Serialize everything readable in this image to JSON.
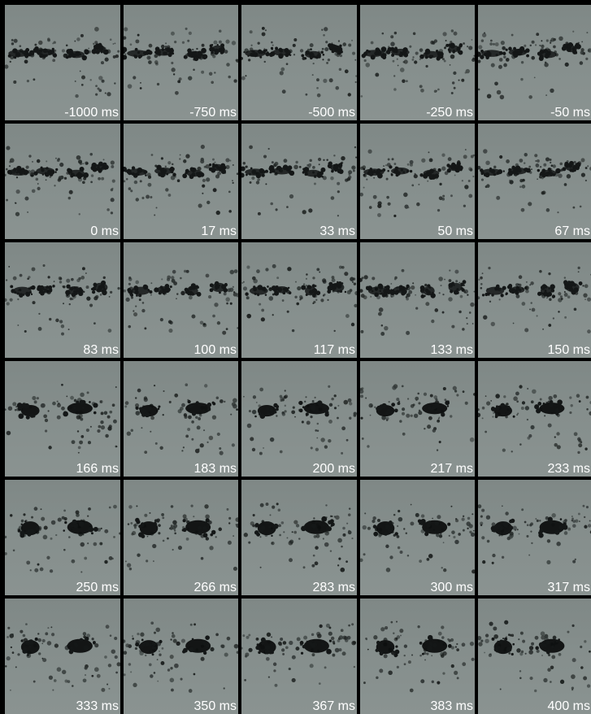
{
  "frames": [
    {
      "label": "-1000 ms",
      "stage": 0
    },
    {
      "label": "-750 ms",
      "stage": 0
    },
    {
      "label": "-500 ms",
      "stage": 0
    },
    {
      "label": "-250 ms",
      "stage": 0
    },
    {
      "label": "-50 ms",
      "stage": 0
    },
    {
      "label": "0 ms",
      "stage": 0
    },
    {
      "label": "17 ms",
      "stage": 0
    },
    {
      "label": "33 ms",
      "stage": 0
    },
    {
      "label": "50 ms",
      "stage": 0
    },
    {
      "label": "67 ms",
      "stage": 0
    },
    {
      "label": "83 ms",
      "stage": 1
    },
    {
      "label": "100 ms",
      "stage": 1
    },
    {
      "label": "117 ms",
      "stage": 1
    },
    {
      "label": "133 ms",
      "stage": 1
    },
    {
      "label": "150 ms",
      "stage": 1
    },
    {
      "label": "166 ms",
      "stage": 2
    },
    {
      "label": "183 ms",
      "stage": 2
    },
    {
      "label": "200 ms",
      "stage": 2
    },
    {
      "label": "217 ms",
      "stage": 2
    },
    {
      "label": "233 ms",
      "stage": 2
    },
    {
      "label": "250 ms",
      "stage": 3
    },
    {
      "label": "266 ms",
      "stage": 3
    },
    {
      "label": "283 ms",
      "stage": 3
    },
    {
      "label": "300 ms",
      "stage": 3
    },
    {
      "label": "317 ms",
      "stage": 3
    },
    {
      "label": "333 ms",
      "stage": 3
    },
    {
      "label": "350 ms",
      "stage": 3
    },
    {
      "label": "367 ms",
      "stage": 3
    },
    {
      "label": "383 ms",
      "stage": 3
    },
    {
      "label": "400 ms",
      "stage": 3
    }
  ]
}
